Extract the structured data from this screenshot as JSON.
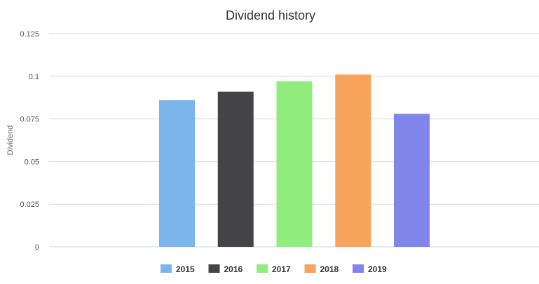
{
  "chart_data": {
    "type": "bar",
    "title": "Dividend history",
    "xlabel": "",
    "ylabel": "Dividend",
    "ylim": [
      0,
      0.125
    ],
    "yticks": [
      "0",
      "0.025",
      "0.05",
      "0.075",
      "0.1",
      "0.125"
    ],
    "grid": true,
    "legend_position": "bottom",
    "series": [
      {
        "name": "2015",
        "value": 0.086,
        "color": "#7cb5ec"
      },
      {
        "name": "2016",
        "value": 0.091,
        "color": "#434348"
      },
      {
        "name": "2017",
        "value": 0.097,
        "color": "#90ed7d"
      },
      {
        "name": "2018",
        "value": 0.101,
        "color": "#f7a35c"
      },
      {
        "name": "2019",
        "value": 0.078,
        "color": "#8085e9"
      }
    ]
  }
}
